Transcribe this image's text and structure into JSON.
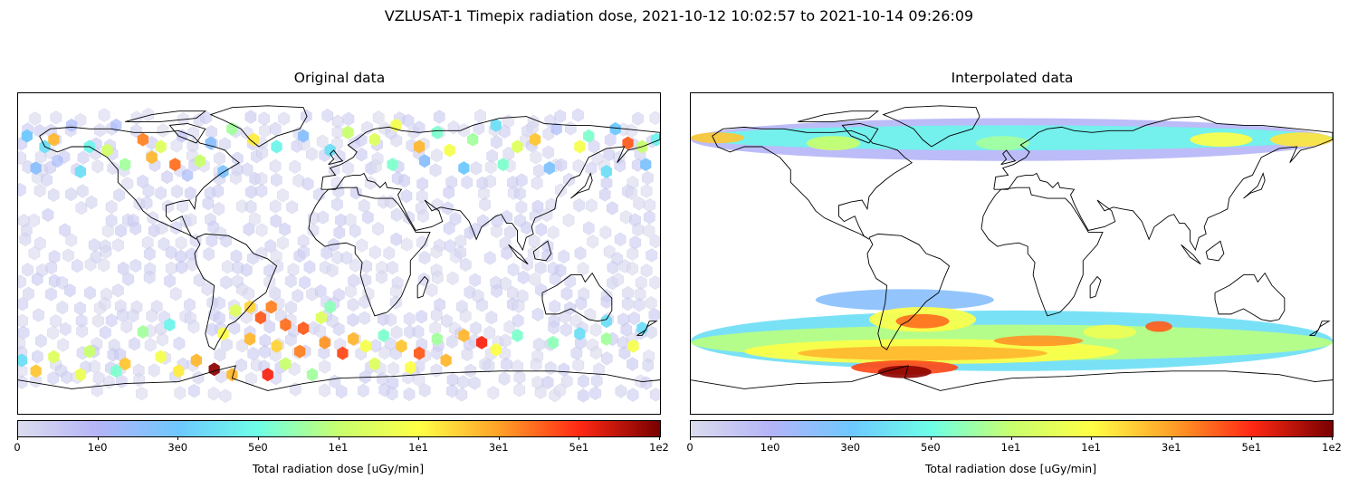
{
  "figure": {
    "title": "VZLUSAT-1 Timepix radiation dose, 2021-10-12 10:02:57 to 2021-10-14 09:26:09"
  },
  "colormap": {
    "stops": [
      "#dcdcee",
      "#b4b4f8",
      "#6ec8ff",
      "#6effe6",
      "#c8ff6e",
      "#ffff46",
      "#ffa028",
      "#ff2814",
      "#780000"
    ]
  },
  "chart_data": [
    {
      "type": "scatter",
      "title": "Original data",
      "marker": "hexagon",
      "projection": "plate carree world map",
      "xlim": [
        -180,
        180
      ],
      "ylim": [
        -90,
        90
      ],
      "colorbar": {
        "label": "Total radiation dose [uGy/min]",
        "ticks": [
          "0",
          "1e0",
          "3e0",
          "5e0",
          "1e1",
          "1e1",
          "3e1",
          "5e1",
          "1e2"
        ]
      },
      "points": [
        [
          -175,
          66,
          0.25
        ],
        [
          -165,
          60,
          0.3
        ],
        [
          -160,
          64,
          0.72
        ],
        [
          -150,
          72,
          0.15
        ],
        [
          -140,
          60,
          0.35
        ],
        [
          -130,
          58,
          0.52
        ],
        [
          -125,
          72,
          0.15
        ],
        [
          -110,
          64,
          0.78
        ],
        [
          -100,
          60,
          0.55
        ],
        [
          -92,
          50,
          0.8
        ],
        [
          -88,
          66,
          0.1
        ],
        [
          -78,
          52,
          0.5
        ],
        [
          -72,
          62,
          0.2
        ],
        [
          -60,
          70,
          0.45
        ],
        [
          -48,
          64,
          0.65
        ],
        [
          -35,
          60,
          0.35
        ],
        [
          -20,
          66,
          0.2
        ],
        [
          -5,
          58,
          0.3
        ],
        [
          5,
          68,
          0.5
        ],
        [
          20,
          64,
          0.55
        ],
        [
          32,
          72,
          0.6
        ],
        [
          45,
          60,
          0.72
        ],
        [
          55,
          68,
          0.4
        ],
        [
          62,
          58,
          0.6
        ],
        [
          75,
          64,
          0.45
        ],
        [
          88,
          72,
          0.3
        ],
        [
          100,
          60,
          0.55
        ],
        [
          110,
          64,
          0.7
        ],
        [
          122,
          70,
          0.15
        ],
        [
          135,
          60,
          0.6
        ],
        [
          140,
          66,
          0.4
        ],
        [
          155,
          70,
          0.25
        ],
        [
          162,
          62,
          0.82
        ],
        [
          170,
          60,
          0.5
        ],
        [
          178,
          64,
          0.35
        ],
        [
          -170,
          48,
          0.2
        ],
        [
          -158,
          52,
          0.15
        ],
        [
          -145,
          46,
          0.3
        ],
        [
          -120,
          50,
          0.45
        ],
        [
          -105,
          54,
          0.72
        ],
        [
          -85,
          44,
          0.15
        ],
        [
          -65,
          46,
          0.22
        ],
        [
          30,
          50,
          0.4
        ],
        [
          48,
          52,
          0.2
        ],
        [
          70,
          48,
          0.25
        ],
        [
          92,
          50,
          0.4
        ],
        [
          118,
          48,
          0.22
        ],
        [
          150,
          46,
          0.3
        ],
        [
          172,
          50,
          0.22
        ],
        [
          -58,
          -32,
          0.55
        ],
        [
          -50,
          -30,
          0.68
        ],
        [
          -38,
          -30,
          0.78
        ],
        [
          -44,
          -36,
          0.82
        ],
        [
          -30,
          -40,
          0.8
        ],
        [
          -20,
          -42,
          0.82
        ],
        [
          -10,
          -36,
          0.55
        ],
        [
          -5,
          -30,
          0.42
        ],
        [
          -65,
          -45,
          0.62
        ],
        [
          -50,
          -48,
          0.72
        ],
        [
          -35,
          -52,
          0.68
        ],
        [
          -22,
          -55,
          0.78
        ],
        [
          -8,
          -50,
          0.76
        ],
        [
          2,
          -56,
          0.84
        ],
        [
          8,
          -48,
          0.72
        ],
        [
          15,
          -52,
          0.6
        ],
        [
          25,
          -46,
          0.4
        ],
        [
          35,
          -52,
          0.7
        ],
        [
          45,
          -56,
          0.82
        ],
        [
          55,
          -48,
          0.45
        ],
        [
          70,
          -46,
          0.72
        ],
        [
          80,
          -50,
          0.88
        ],
        [
          88,
          -54,
          0.62
        ],
        [
          100,
          -46,
          0.4
        ],
        [
          120,
          -50,
          0.42
        ],
        [
          135,
          -45,
          0.3
        ],
        [
          150,
          -48,
          0.45
        ],
        [
          165,
          -52,
          0.6
        ],
        [
          -160,
          -58,
          0.55
        ],
        [
          -140,
          -55,
          0.5
        ],
        [
          -120,
          -62,
          0.7
        ],
        [
          -100,
          -58,
          0.6
        ],
        [
          -80,
          -60,
          0.72
        ],
        [
          -70,
          -65,
          0.98
        ],
        [
          -60,
          -68,
          0.72
        ],
        [
          -40,
          -68,
          0.88
        ],
        [
          -30,
          -62,
          0.5
        ],
        [
          -15,
          -68,
          0.45
        ],
        [
          20,
          -62,
          0.55
        ],
        [
          40,
          -64,
          0.62
        ],
        [
          60,
          -60,
          0.72
        ],
        [
          -178,
          -60,
          0.3
        ],
        [
          -170,
          -66,
          0.7
        ],
        [
          -145,
          -68,
          0.58
        ],
        [
          -125,
          -66,
          0.4
        ],
        [
          -90,
          -66,
          0.65
        ],
        [
          -110,
          -44,
          0.45
        ],
        [
          -95,
          -40,
          0.35
        ],
        [
          150,
          -38,
          0.3
        ],
        [
          170,
          -42,
          0.3
        ]
      ]
    },
    {
      "type": "heatmap",
      "title": "Interpolated data",
      "projection": "plate carree world map",
      "xlim": [
        -180,
        180
      ],
      "ylim": [
        -90,
        90
      ],
      "colorbar": {
        "label": "Total radiation dose [uGy/min]",
        "ticks": [
          "0",
          "1e0",
          "3e0",
          "5e0",
          "1e1",
          "1e1",
          "3e1",
          "5e1",
          "1e2"
        ]
      },
      "regions": [
        [
          -180,
          52,
          180,
          76,
          0.12
        ],
        [
          -180,
          58,
          180,
          72,
          0.35
        ],
        [
          -180,
          62,
          -150,
          68,
          0.7
        ],
        [
          -115,
          58,
          -85,
          66,
          0.5
        ],
        [
          -20,
          58,
          10,
          66,
          0.45
        ],
        [
          100,
          60,
          135,
          68,
          0.62
        ],
        [
          145,
          60,
          180,
          68,
          0.66
        ],
        [
          -110,
          -20,
          -10,
          -32,
          0.2
        ],
        [
          -180,
          -32,
          180,
          -66,
          0.3
        ],
        [
          -180,
          -40,
          180,
          -60,
          0.48
        ],
        [
          -80,
          -30,
          -20,
          -44,
          0.62
        ],
        [
          -65,
          -34,
          -35,
          -42,
          0.8
        ],
        [
          -150,
          -48,
          60,
          -62,
          0.62
        ],
        [
          -120,
          -52,
          20,
          -60,
          0.72
        ],
        [
          -10,
          -46,
          40,
          -52,
          0.76
        ],
        [
          40,
          -40,
          70,
          -48,
          0.58
        ],
        [
          75,
          -38,
          90,
          -44,
          0.82
        ],
        [
          -90,
          -60,
          -30,
          -68,
          0.84
        ],
        [
          -75,
          -63,
          -45,
          -70,
          0.98
        ]
      ]
    }
  ]
}
